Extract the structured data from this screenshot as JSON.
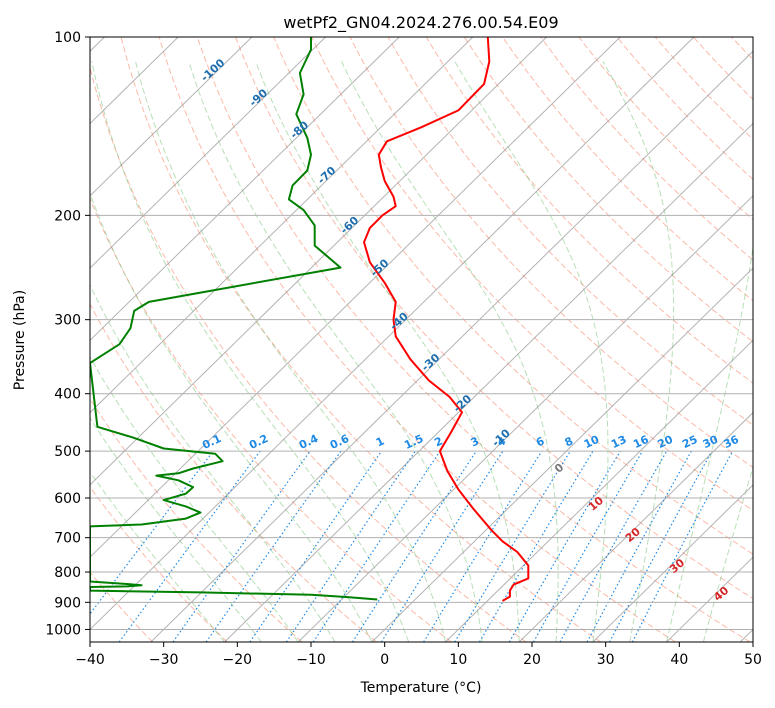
{
  "chart_data": {
    "type": "line",
    "title": "wetPf2_GN04.2024.276.00.54.E09",
    "xlabel": "Temperature (°C)",
    "ylabel": "Pressure (hPa)",
    "xlim": [
      -40,
      50
    ],
    "ylim": [
      1050,
      100
    ],
    "y_scale": "log",
    "x_ticks": [
      -40,
      -30,
      -20,
      -10,
      0,
      10,
      20,
      30,
      40,
      50
    ],
    "x_tick_labels": [
      "−40",
      "−30",
      "−20",
      "−10",
      "0",
      "10",
      "20",
      "30",
      "40",
      "50"
    ],
    "y_ticks": [
      100,
      200,
      300,
      400,
      500,
      600,
      700,
      800,
      900,
      1000
    ],
    "grid": true,
    "series": [
      {
        "color": "#ff0000",
        "points": [
          [
            14.0,
            100
          ],
          [
            14.2,
            110
          ],
          [
            13.5,
            120
          ],
          [
            10.0,
            133
          ],
          [
            5.0,
            142
          ],
          [
            0.3,
            150
          ],
          [
            -0.8,
            158
          ],
          [
            -0.5,
            166
          ],
          [
            0.0,
            175
          ],
          [
            1.2,
            186
          ],
          [
            1.5,
            193
          ],
          [
            -0.3,
            200
          ],
          [
            -2.0,
            210
          ],
          [
            -2.8,
            222
          ],
          [
            -2.0,
            240
          ],
          [
            0.0,
            260
          ],
          [
            1.5,
            280
          ],
          [
            1.2,
            300
          ],
          [
            1.5,
            320
          ],
          [
            3.5,
            350
          ],
          [
            6.0,
            380
          ],
          [
            8.8,
            405
          ],
          [
            10.5,
            430
          ],
          [
            9.0,
            465
          ],
          [
            7.5,
            500
          ],
          [
            8.5,
            540
          ],
          [
            10.0,
            580
          ],
          [
            12.0,
            625
          ],
          [
            14.5,
            680
          ],
          [
            16.0,
            710
          ],
          [
            18.0,
            740
          ],
          [
            19.5,
            780
          ],
          [
            19.5,
            820
          ],
          [
            17.5,
            840
          ],
          [
            17.0,
            860
          ],
          [
            17.0,
            880
          ],
          [
            16.0,
            895
          ]
        ]
      },
      {
        "color": "#008000",
        "points": [
          [
            -10.0,
            100
          ],
          [
            -10.0,
            105
          ],
          [
            -11.5,
            115
          ],
          [
            -11.0,
            125
          ],
          [
            -12.0,
            135
          ],
          [
            -10.5,
            148
          ],
          [
            -10.0,
            158
          ],
          [
            -10.5,
            168
          ],
          [
            -12.5,
            178
          ],
          [
            -13.0,
            188
          ],
          [
            -11.0,
            196
          ],
          [
            -9.5,
            208
          ],
          [
            -9.5,
            225
          ],
          [
            -6.0,
            245
          ],
          [
            -25.0,
            270
          ],
          [
            -32.0,
            280
          ],
          [
            -34.0,
            290
          ],
          [
            -34.5,
            310
          ],
          [
            -36.0,
            330
          ],
          [
            -40.0,
            355
          ],
          [
            -39.0,
            455
          ],
          [
            -34.0,
            475
          ],
          [
            -30.0,
            495
          ],
          [
            -23.0,
            505
          ],
          [
            -22.0,
            520
          ],
          [
            -26.0,
            535
          ],
          [
            -28.0,
            545
          ],
          [
            -31.0,
            550
          ],
          [
            -28.0,
            560
          ],
          [
            -26.0,
            575
          ],
          [
            -27.0,
            590
          ],
          [
            -30.0,
            605
          ],
          [
            -27.0,
            620
          ],
          [
            -25.0,
            635
          ],
          [
            -27.0,
            650
          ],
          [
            -33.0,
            665
          ],
          [
            -40.0,
            670
          ],
          [
            -40.0,
            830
          ],
          [
            -35.0,
            838
          ],
          [
            -33.0,
            842
          ],
          [
            -35.0,
            846
          ],
          [
            -40.0,
            848
          ],
          [
            -40.0,
            860
          ],
          [
            -25.0,
            866
          ],
          [
            -10.0,
            874
          ],
          [
            -5.0,
            882
          ],
          [
            -1.0,
            890
          ]
        ]
      }
    ],
    "mixing_ratio_labels": [
      "0.1",
      "0.2",
      "0.4",
      "0.6",
      "1",
      "1.5",
      "2",
      "3",
      "4",
      "6",
      "8",
      "10",
      "13",
      "16",
      "20",
      "25",
      "30",
      "36"
    ],
    "isotherm_labels": [
      "-100",
      "-90",
      "-80",
      "-70",
      "-60",
      "-50",
      "-40",
      "-30",
      "-20",
      "-10"
    ],
    "theta_e_labels": [
      "0",
      "10",
      "20",
      "30",
      "40"
    ],
    "colors": {
      "temperature": "#ff0000",
      "dewpoint": "#008000",
      "isotherm_label": "#1f6fb0",
      "mixing_ratio": "#1e8ae6",
      "dry_adiabat": "#fa8060",
      "moist_adiabat": "#6fbf6f",
      "theta_e_label": "#d62728",
      "isotherm_line": "#9a9a9a",
      "grid": "#b0b0b0"
    }
  }
}
